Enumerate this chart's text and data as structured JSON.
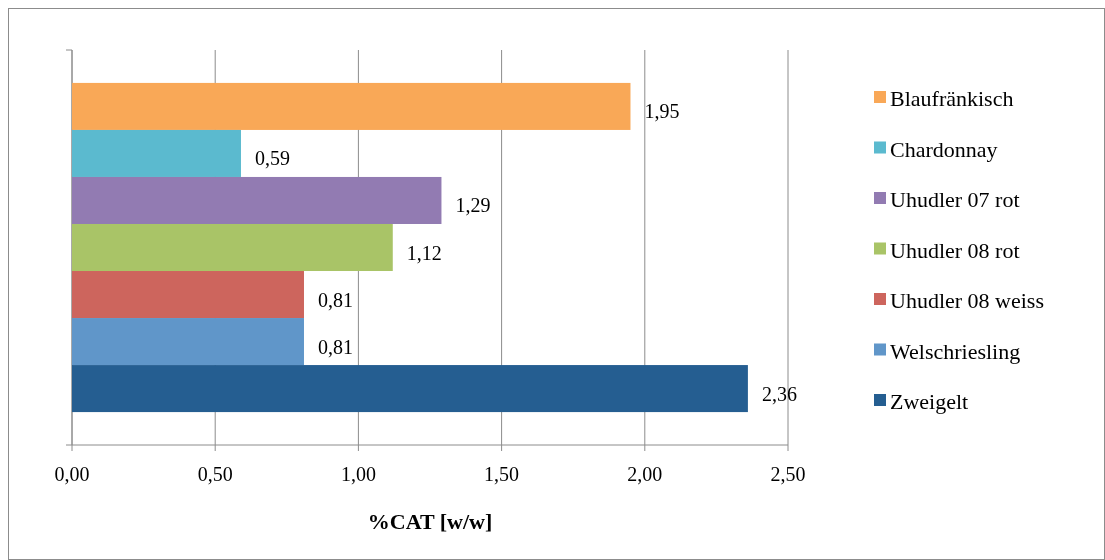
{
  "chart_data": {
    "type": "bar",
    "orientation": "horizontal",
    "categories": [
      null
    ],
    "series": [
      {
        "name": "Blaufränkisch",
        "color": "#f9a857",
        "values": [
          1.95
        ],
        "value_labels": [
          "1,95"
        ]
      },
      {
        "name": "Chardonnay",
        "color": "#5bbacf",
        "values": [
          0.59
        ],
        "value_labels": [
          "0,59"
        ]
      },
      {
        "name": "Uhudler 07 rot",
        "color": "#927bb2",
        "values": [
          1.29
        ],
        "value_labels": [
          "1,29"
        ]
      },
      {
        "name": "Uhudler 08 rot",
        "color": "#a9c467",
        "values": [
          1.12
        ],
        "value_labels": [
          "1,12"
        ]
      },
      {
        "name": "Uhudler 08 weiss",
        "color": "#cd655d",
        "values": [
          0.81
        ],
        "value_labels": [
          "0,81"
        ]
      },
      {
        "name": "Welschriesling",
        "color": "#6096c9",
        "values": [
          0.81
        ],
        "value_labels": [
          "0,81"
        ]
      },
      {
        "name": "Zweigelt",
        "color": "#255e91",
        "values": [
          2.36
        ],
        "value_labels": [
          "2,36"
        ]
      }
    ],
    "xlabel": "%CAT [w/w]",
    "xlim": [
      0,
      2.5
    ],
    "xticks": [
      {
        "value": 0,
        "label": "0,00"
      },
      {
        "value": 0.5,
        "label": "0,50"
      },
      {
        "value": 1,
        "label": "1,00"
      },
      {
        "value": 1.5,
        "label": "1,50"
      },
      {
        "value": 2,
        "label": "2,00"
      },
      {
        "value": 2.5,
        "label": "2,50"
      }
    ],
    "grid": "x",
    "legend": "right"
  }
}
